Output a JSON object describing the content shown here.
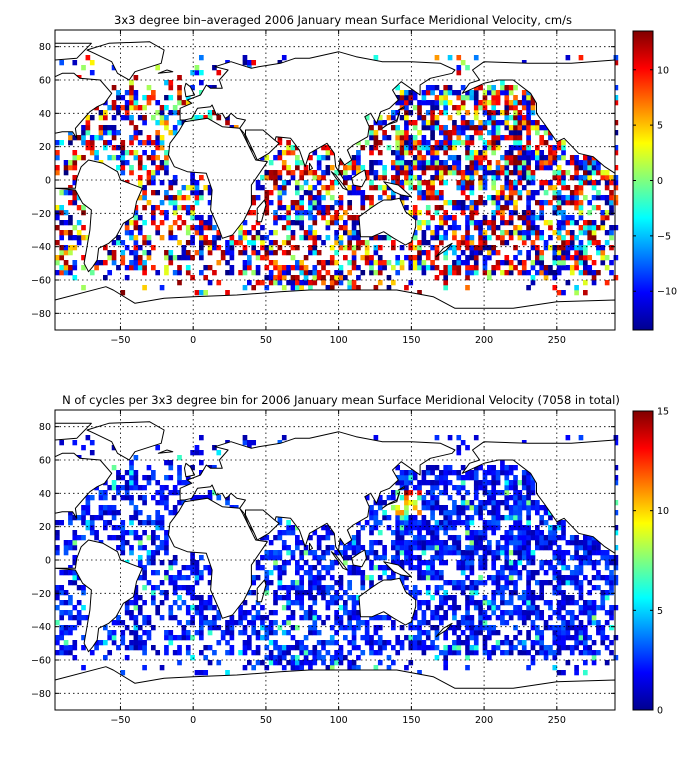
{
  "chart_data": [
    {
      "type": "heatmap",
      "title": "3x3 degree bin–averaged 2006 January mean Surface Meridional Velocity, cm/s",
      "xlabel": "",
      "ylabel": "",
      "xlim": [
        -95,
        290
      ],
      "ylim": [
        -90,
        90
      ],
      "xticks": [
        -50,
        0,
        50,
        100,
        150,
        200,
        250
      ],
      "yticks": [
        -80,
        -60,
        -40,
        -20,
        0,
        20,
        40,
        60,
        80
      ],
      "xtick_labels": [
        "−50",
        "0",
        "50",
        "100",
        "150",
        "200",
        "250"
      ],
      "ytick_labels": [
        "−80",
        "−60",
        "−40",
        "−20",
        "0",
        "20",
        "40",
        "60",
        "80"
      ],
      "grid": true,
      "bin_size_deg": 3,
      "colorbar": {
        "range": [
          -13.5,
          13.5
        ],
        "ticks": [
          -10,
          -5,
          0,
          5,
          10
        ],
        "tick_labels": [
          "−10",
          "−5",
          "0",
          "5",
          "10"
        ],
        "colormap": "jet"
      },
      "coverage": "sparse global ocean bins, denser in North Pacific and Southern Ocean",
      "seed": 17
    },
    {
      "type": "heatmap",
      "title": "N of cycles per 3x3 degree bin for 2006 January mean Surface Meridional Velocity (7058 in total)",
      "total_count": 7058,
      "xlabel": "",
      "ylabel": "",
      "xlim": [
        -95,
        290
      ],
      "ylim": [
        -90,
        90
      ],
      "xticks": [
        -50,
        0,
        50,
        100,
        150,
        200,
        250
      ],
      "yticks": [
        -80,
        -60,
        -40,
        -20,
        0,
        20,
        40,
        60,
        80
      ],
      "xtick_labels": [
        "−50",
        "0",
        "50",
        "100",
        "150",
        "200",
        "250"
      ],
      "ytick_labels": [
        "−80",
        "−60",
        "−40",
        "−20",
        "0",
        "20",
        "40",
        "60",
        "80"
      ],
      "grid": true,
      "bin_size_deg": 3,
      "colorbar": {
        "range": [
          0,
          15
        ],
        "ticks": [
          0,
          5,
          10,
          15
        ],
        "tick_labels": [
          "0",
          "5",
          "10",
          "15"
        ],
        "colormap": "jet"
      },
      "coverage": "same bins as upper panel; most bins 1–3 cycles, peak near Kuroshio (140–150E, 30–40N)",
      "seed": 17
    }
  ]
}
